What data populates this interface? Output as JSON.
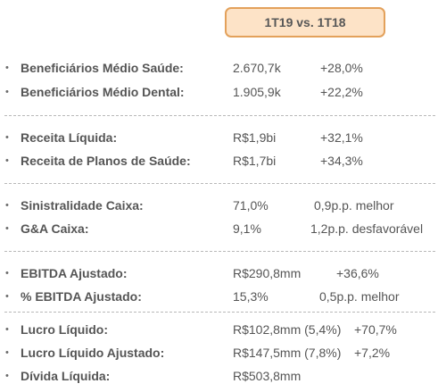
{
  "header": {
    "period": "1T19 vs. 1T18"
  },
  "groups": [
    {
      "rows": [
        {
          "label": "Beneficiários Médio Saúde:",
          "value": "2.670,7k",
          "change": "+28,0%"
        },
        {
          "label": "Beneficiários Médio Dental:",
          "value": "1.905,9k",
          "change": "+22,2%"
        }
      ]
    },
    {
      "rows": [
        {
          "label": "Receita Líquida:",
          "value": "R$1,9bi",
          "change": "+32,1%"
        },
        {
          "label": "Receita de Planos de Saúde:",
          "value": "R$1,7bi",
          "change": "+34,3%"
        }
      ]
    },
    {
      "rows": [
        {
          "label": "Sinistralidade Caixa:",
          "value": "71,0%",
          "change": "0,9p.p. melhor"
        },
        {
          "label": "G&A Caixa:",
          "value": "9,1%",
          "change": "1,2p.p. desfavorável"
        }
      ]
    },
    {
      "rows": [
        {
          "label": "EBITDA Ajustado:",
          "value": "R$290,8mm",
          "change": "+36,6%"
        },
        {
          "label": "% EBITDA Ajustado:",
          "value": "15,3%",
          "change": "0,5p.p. melhor"
        }
      ]
    },
    {
      "rows": [
        {
          "label": "Lucro Líquido:",
          "value": "R$102,8mm (5,4%)",
          "change": "+70,7%"
        },
        {
          "label": "Lucro Líquido Ajustado:",
          "value": "R$147,5mm (7,8%)",
          "change": "+7,2%"
        },
        {
          "label": "Dívida Líquida:",
          "value": "R$503,8mm",
          "change": ""
        }
      ]
    }
  ],
  "bullet_glyph": "•"
}
